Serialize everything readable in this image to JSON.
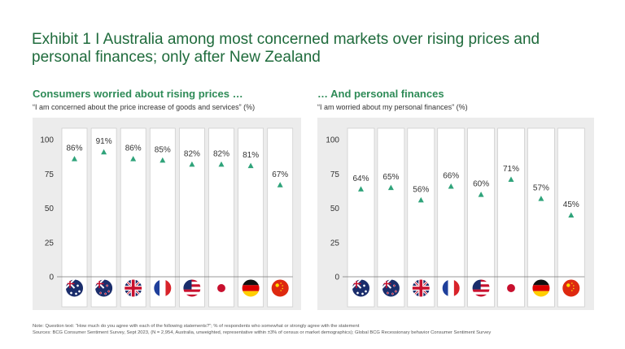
{
  "title": "Exhibit 1 I Australia among most concerned markets over rising prices and personal finances; only after New Zealand",
  "notes": {
    "line1": "Note: Question text: “How much do you agree with each of the following statements?”; % of respondents who somewhat or strongly agree with the statement",
    "line2": "Sources: BCG Consumer Sentiment Survey, Sept 2023, (N = 2,954, Australia, unweighted, representative within ±3% of census or market demographics); Global BCG Recessionary behavior Consumer Sentiment Survey"
  },
  "colors": {
    "title": "#1f6b3c",
    "subtitle": "#2e8b57",
    "marker": "#2fa37a",
    "panel": "#ececec"
  },
  "chart_data": [
    {
      "type": "scatter",
      "title": "Consumers worried about rising prices …",
      "subtitle": "“I am concerned about the price increase of goods and services” (%)",
      "categories": [
        "Australia",
        "New Zealand",
        "United Kingdom",
        "France",
        "United States",
        "Japan",
        "Germany",
        "China"
      ],
      "flags": [
        "au",
        "nz",
        "uk",
        "fr",
        "us",
        "jp",
        "de",
        "cn"
      ],
      "values": [
        86,
        91,
        86,
        85,
        82,
        82,
        81,
        67
      ],
      "value_labels": [
        "86%",
        "91%",
        "86%",
        "85%",
        "82%",
        "82%",
        "81%",
        "67%"
      ],
      "yticks": [
        "100",
        "75",
        "50",
        "25",
        "0"
      ],
      "ylim": [
        0,
        100
      ]
    },
    {
      "type": "scatter",
      "title": "… And personal finances",
      "subtitle": "“I am worried about my personal finances” (%)",
      "categories": [
        "Australia",
        "New Zealand",
        "United Kingdom",
        "France",
        "United States",
        "Japan",
        "Germany",
        "China"
      ],
      "flags": [
        "au",
        "nz",
        "uk",
        "fr",
        "us",
        "jp",
        "de",
        "cn"
      ],
      "values": [
        64,
        65,
        56,
        66,
        60,
        71,
        57,
        45
      ],
      "value_labels": [
        "64%",
        "65%",
        "56%",
        "66%",
        "60%",
        "71%",
        "57%",
        "45%"
      ],
      "yticks": [
        "100",
        "75",
        "50",
        "25",
        "0"
      ],
      "ylim": [
        0,
        100
      ]
    }
  ]
}
